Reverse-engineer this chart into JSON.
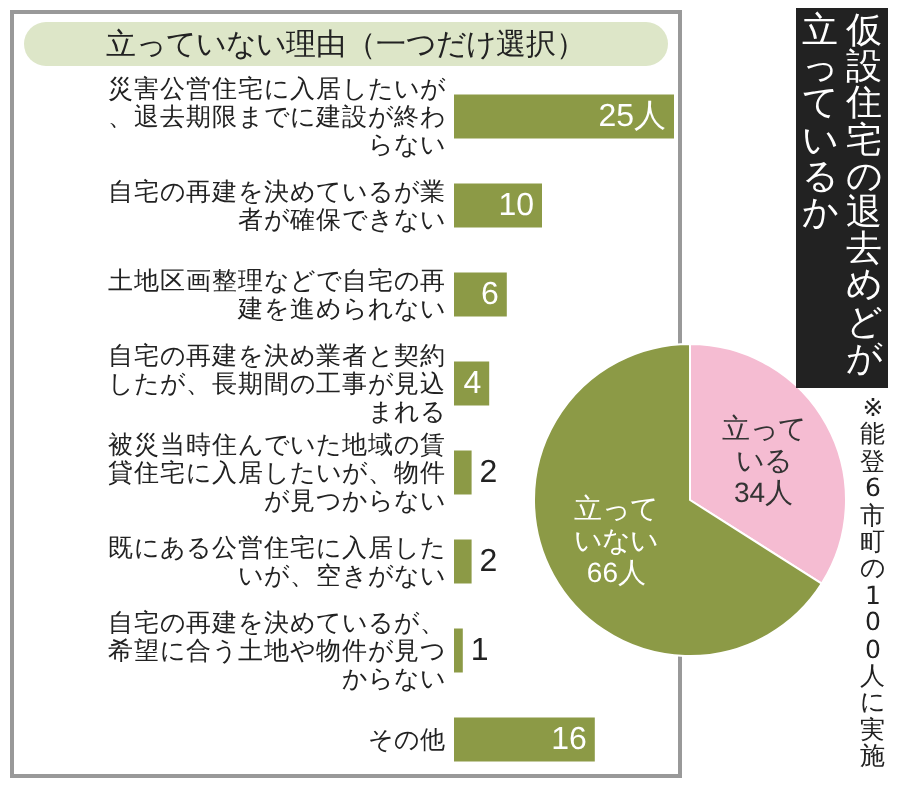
{
  "chart_data": [
    {
      "type": "bar",
      "orientation": "horizontal",
      "title": "立っていない理由（一つだけ選択）",
      "categories": [
        "災害公営住宅に入居したいが、退去期限までに建設が終わらない",
        "自宅の再建を決めているが業者が確保できない",
        "土地区画整理などで自宅の再建を進められない",
        "自宅の再建を決め業者と契約したが、長期間の工事が見込まれる",
        "被災当時住んでいた地域の賃貸住宅に入居したいが、物件が見つからない",
        "既にある公営住宅に入居したいが、空きがない",
        "自宅の再建を決めているが、希望に合う土地や物件が見つからない",
        "その他"
      ],
      "values": [
        25,
        10,
        6,
        4,
        2,
        2,
        1,
        16
      ],
      "value_labels": [
        "25人",
        "10",
        "6",
        "4",
        "2",
        "2",
        "1",
        "16"
      ],
      "color": "#8c9a46"
    },
    {
      "type": "pie",
      "title": "仮設住宅の退去めどが立っているか",
      "categories": [
        "立っている",
        "立っていない"
      ],
      "values": [
        34,
        66
      ],
      "value_labels": [
        "34人",
        "66人"
      ],
      "colors": [
        "#f5bcd2",
        "#8c9a46"
      ],
      "annotations": [
        "※能登6市町の100人に実施"
      ]
    }
  ]
}
